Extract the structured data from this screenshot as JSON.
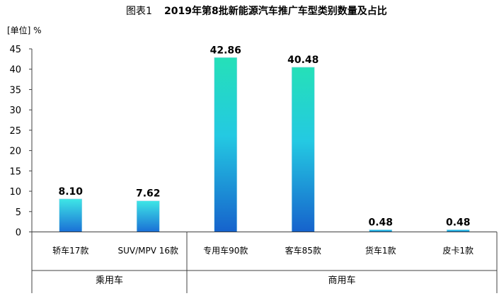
{
  "chart_data": {
    "type": "bar",
    "title_prefix": "图表1",
    "title": "2019年第8批新能源汽车推广车型类别数量及占比",
    "unit_label": "[单位] %",
    "categories": [
      "轿车17款",
      "SUV/MPV 16款",
      "专用车90款",
      "客车85款",
      "货车1款",
      "皮卡1款"
    ],
    "values": [
      8.1,
      7.62,
      42.86,
      40.48,
      0.48,
      0.48
    ],
    "value_labels": [
      "8.10",
      "7.62",
      "42.86",
      "40.48",
      "0.48",
      "0.48"
    ],
    "groups": [
      {
        "name": "乘用车",
        "categories": [
          "轿车17款",
          "SUV/MPV 16款"
        ]
      },
      {
        "name": "商用车",
        "categories": [
          "专用车90款",
          "客车85款",
          "货车1款",
          "皮卡1款"
        ]
      }
    ],
    "ylim": [
      0,
      45
    ],
    "yticks": [
      "0",
      "5",
      "10",
      "15",
      "20",
      "25",
      "30",
      "35",
      "40",
      "45"
    ],
    "grid": false,
    "legend": "none",
    "colors": {
      "bar_light_sedan": "#3ee6e6",
      "bar_light_special": "#25e0b8",
      "bar_dark": "#1a6fd6",
      "axis": "#404040"
    }
  }
}
